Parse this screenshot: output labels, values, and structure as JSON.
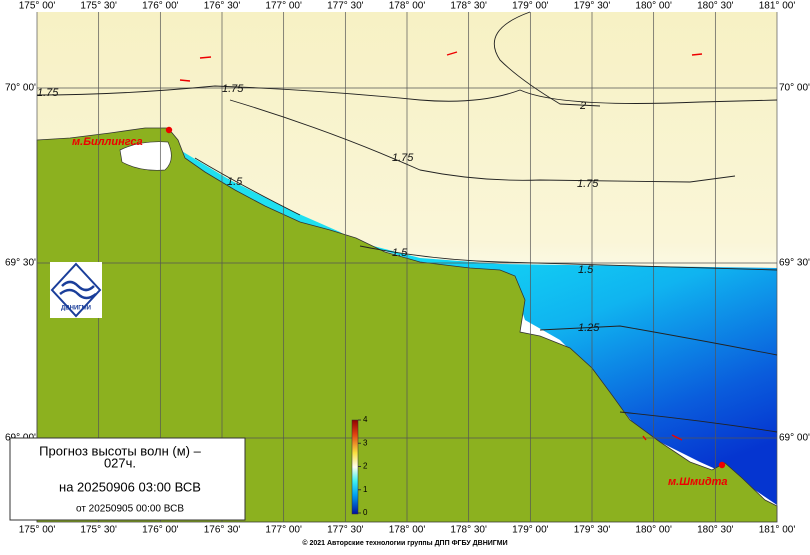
{
  "map": {
    "lon_labels": [
      "175° 00'",
      "175° 30'",
      "176° 00'",
      "176° 30'",
      "177° 00'",
      "177° 30'",
      "178° 00'",
      "178° 30'",
      "179° 00'",
      "179° 30'",
      "180° 00'",
      "180° 30'",
      "181° 00'"
    ],
    "lat_labels": [
      "70° 00'",
      "69° 30'",
      "69° 00'"
    ],
    "contour_labels": [
      "1.75",
      "1.75",
      "2",
      "1.75",
      "1.75",
      "1.5",
      "1.5",
      "1.5",
      "1.25"
    ],
    "places": [
      "м.Биллингса",
      "м.Шмидта"
    ],
    "logo_text": "ДВНИГМИ"
  },
  "legend": {
    "title": "Прогноз высоты волн (м) –",
    "lead": "027ч.",
    "valid": "на 20250906 03:00 ВСВ",
    "issued": "от 20250905 00:00 ВСВ"
  },
  "colorbar": {
    "ticks": [
      0,
      1,
      2,
      3,
      4
    ]
  },
  "footer": "© 2021 Авторские технологии группы ДПП ФГБУ ДВНИГМИ"
}
